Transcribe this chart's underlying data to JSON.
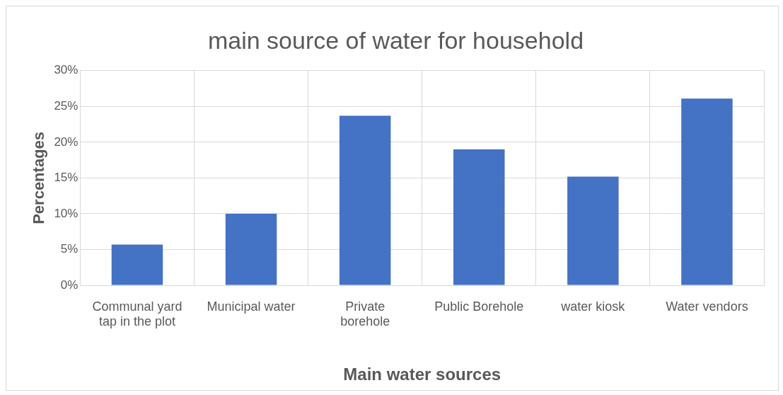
{
  "chart_data": {
    "type": "bar",
    "title": "main source of water for household",
    "xlabel": "Main water sources",
    "ylabel": "Percentages",
    "categories": [
      "Communal yard tap in the plot",
      "Municipal water",
      "Private borehole",
      "Public Borehole",
      "water kiosk",
      "Water vendors"
    ],
    "values": [
      5.7,
      10,
      23.7,
      19,
      15.2,
      26.1
    ],
    "color": "#4472c4",
    "ylim": [
      0,
      30
    ],
    "yticks": [
      {
        "value": 0,
        "label": "0%"
      },
      {
        "value": 5,
        "label": "5%"
      },
      {
        "value": 10,
        "label": "10%"
      },
      {
        "value": 15,
        "label": "15%"
      },
      {
        "value": 20,
        "label": "20%"
      },
      {
        "value": 25,
        "label": "25%"
      },
      {
        "value": 30,
        "label": "30%"
      }
    ],
    "grid": true
  }
}
